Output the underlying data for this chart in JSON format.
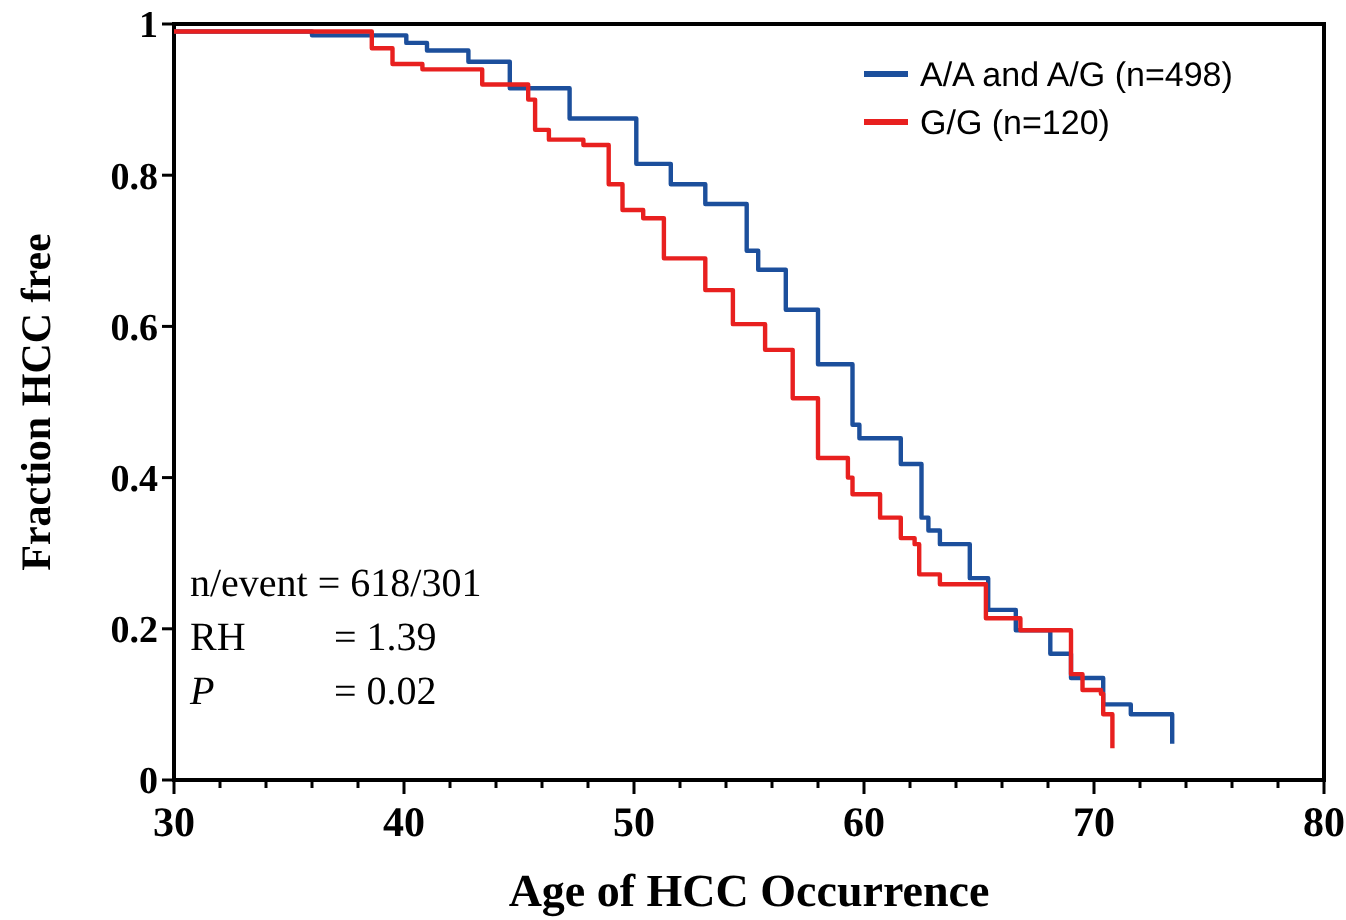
{
  "chart_data": {
    "type": "step",
    "xlabel": "Age of HCC Occurrence",
    "ylabel": "Fraction HCC free",
    "xlim": [
      30,
      80
    ],
    "ylim": [
      0,
      1
    ],
    "xticks": [
      30,
      {
        "value": 32,
        "label": null
      },
      {
        "value": 34,
        "label": null
      },
      {
        "value": 36,
        "label": null
      },
      {
        "value": 38,
        "label": null
      },
      40,
      {
        "value": 42,
        "label": null
      },
      {
        "value": 44,
        "label": null
      },
      {
        "value": 46,
        "label": null
      },
      {
        "value": 48,
        "label": null
      },
      50,
      {
        "value": 52,
        "label": null
      },
      {
        "value": 54,
        "label": null
      },
      {
        "value": 56,
        "label": null
      },
      {
        "value": 58,
        "label": null
      },
      60,
      {
        "value": 62,
        "label": null
      },
      {
        "value": 64,
        "label": null
      },
      {
        "value": 66,
        "label": null
      },
      {
        "value": 68,
        "label": null
      },
      70,
      {
        "value": 72,
        "label": null
      },
      {
        "value": 74,
        "label": null
      },
      {
        "value": 76,
        "label": null
      },
      {
        "value": 78,
        "label": null
      },
      80
    ],
    "yticks": [
      0,
      0.2,
      0.4,
      0.6,
      0.8,
      1
    ],
    "legend": "top right",
    "grid": false,
    "marker": "none",
    "line_style": "solid",
    "annotations": [
      "n/event = 618/301",
      "RH = 1.39",
      "P = 0.02"
    ],
    "series": [
      {
        "name": "A/A and A/G (n=498)",
        "color": "#1c4f9c",
        "x": [
          30,
          36,
          38.4,
          40.1,
          41,
          42.8,
          44.6,
          47.2,
          50.1,
          51.6,
          53.1,
          54.9,
          55.4,
          56.6,
          58,
          59.5,
          59.8,
          61.6,
          62.5,
          62.8,
          63.3,
          64.6,
          65.4,
          66.6,
          68.1,
          69,
          70.4,
          71.6,
          73.4,
          73.4
        ],
        "values": [
          0.99,
          0.985,
          0.985,
          0.975,
          0.965,
          0.95,
          0.915,
          0.875,
          0.815,
          0.788,
          0.762,
          0.7,
          0.675,
          0.622,
          0.55,
          0.47,
          0.452,
          0.418,
          0.347,
          0.33,
          0.312,
          0.267,
          0.225,
          0.198,
          0.167,
          0.135,
          0.1,
          0.087,
          0.069,
          0.048
        ]
      },
      {
        "name": "G/G (n=120)",
        "color": "#e8201f",
        "x": [
          30,
          38.6,
          39.5,
          40.8,
          43.4,
          45.4,
          45.7,
          46.3,
          47.8,
          48.9,
          49.5,
          50.4,
          51.3,
          53.1,
          54.3,
          55.7,
          56.9,
          58,
          59.3,
          59.5,
          60.7,
          61.6,
          62.2,
          62.4,
          63.3,
          65.3,
          66.8,
          69,
          69.5,
          70.3,
          70.4,
          70.8
        ],
        "values": [
          0.99,
          0.968,
          0.947,
          0.94,
          0.92,
          0.9,
          0.86,
          0.847,
          0.84,
          0.788,
          0.754,
          0.743,
          0.69,
          0.648,
          0.603,
          0.569,
          0.505,
          0.426,
          0.4,
          0.378,
          0.347,
          0.32,
          0.312,
          0.272,
          0.259,
          0.214,
          0.198,
          0.14,
          0.119,
          0.114,
          0.087,
          0.042
        ]
      }
    ]
  }
}
